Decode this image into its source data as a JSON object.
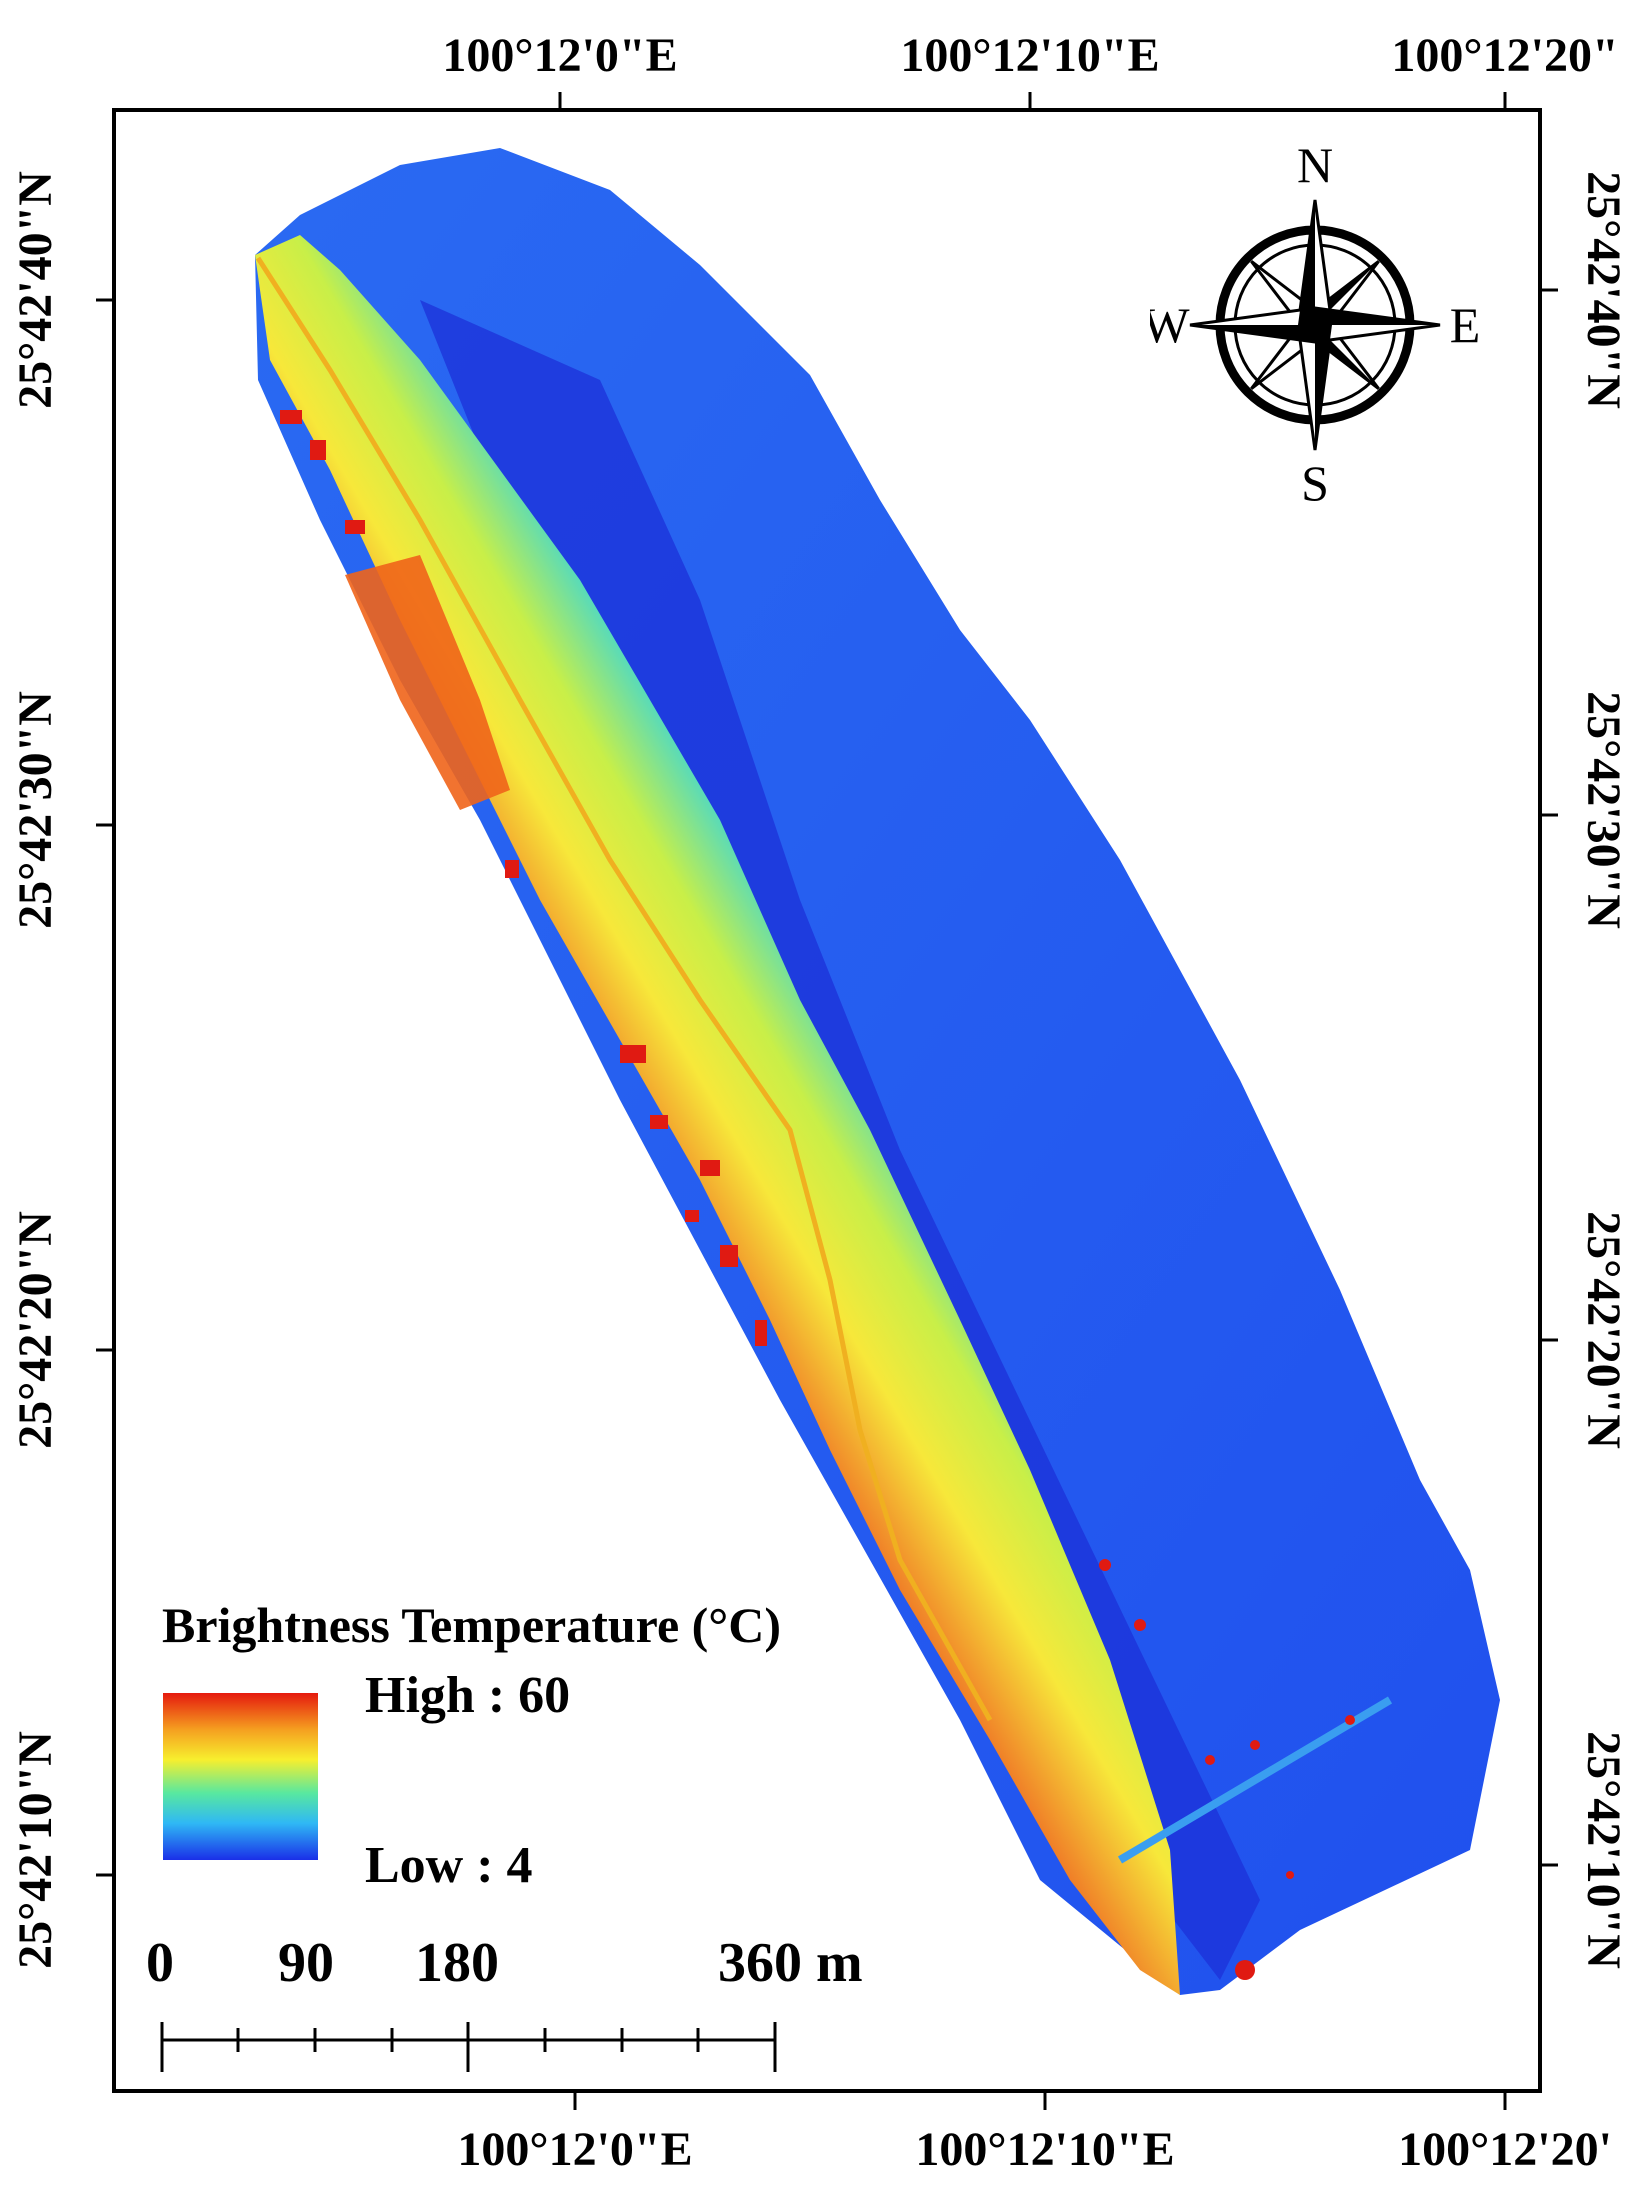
{
  "map": {
    "top_lon_labels": [
      "100°12'0\"E",
      "100°12'10\"E",
      "100°12'20\""
    ],
    "bottom_lon_labels": [
      "100°12'0\"E",
      "100°12'10\"E",
      "100°12'20'"
    ],
    "left_lat_labels": [
      "25°42'40\"N",
      "25°42'30\"N",
      "25°42'20\"N",
      "25°42'10\"N"
    ],
    "right_lat_labels": [
      "25°42'40\"N",
      "25°42'30\"N",
      "25°42'20\"N",
      "25°42'10\"N"
    ]
  },
  "compass": {
    "north": "N",
    "south": "S",
    "east": "E",
    "west": "W"
  },
  "legend": {
    "title": "Brightness Temperature (°C)",
    "high_label": "High : 60",
    "low_label": "Low : 4",
    "colors": [
      "#e51a0e",
      "#f5a020",
      "#f7ef2e",
      "#58e8a0",
      "#2fb8f5",
      "#1a2fe8"
    ]
  },
  "scale_bar": {
    "labels": [
      "0",
      "90",
      "180",
      "360 m"
    ]
  }
}
